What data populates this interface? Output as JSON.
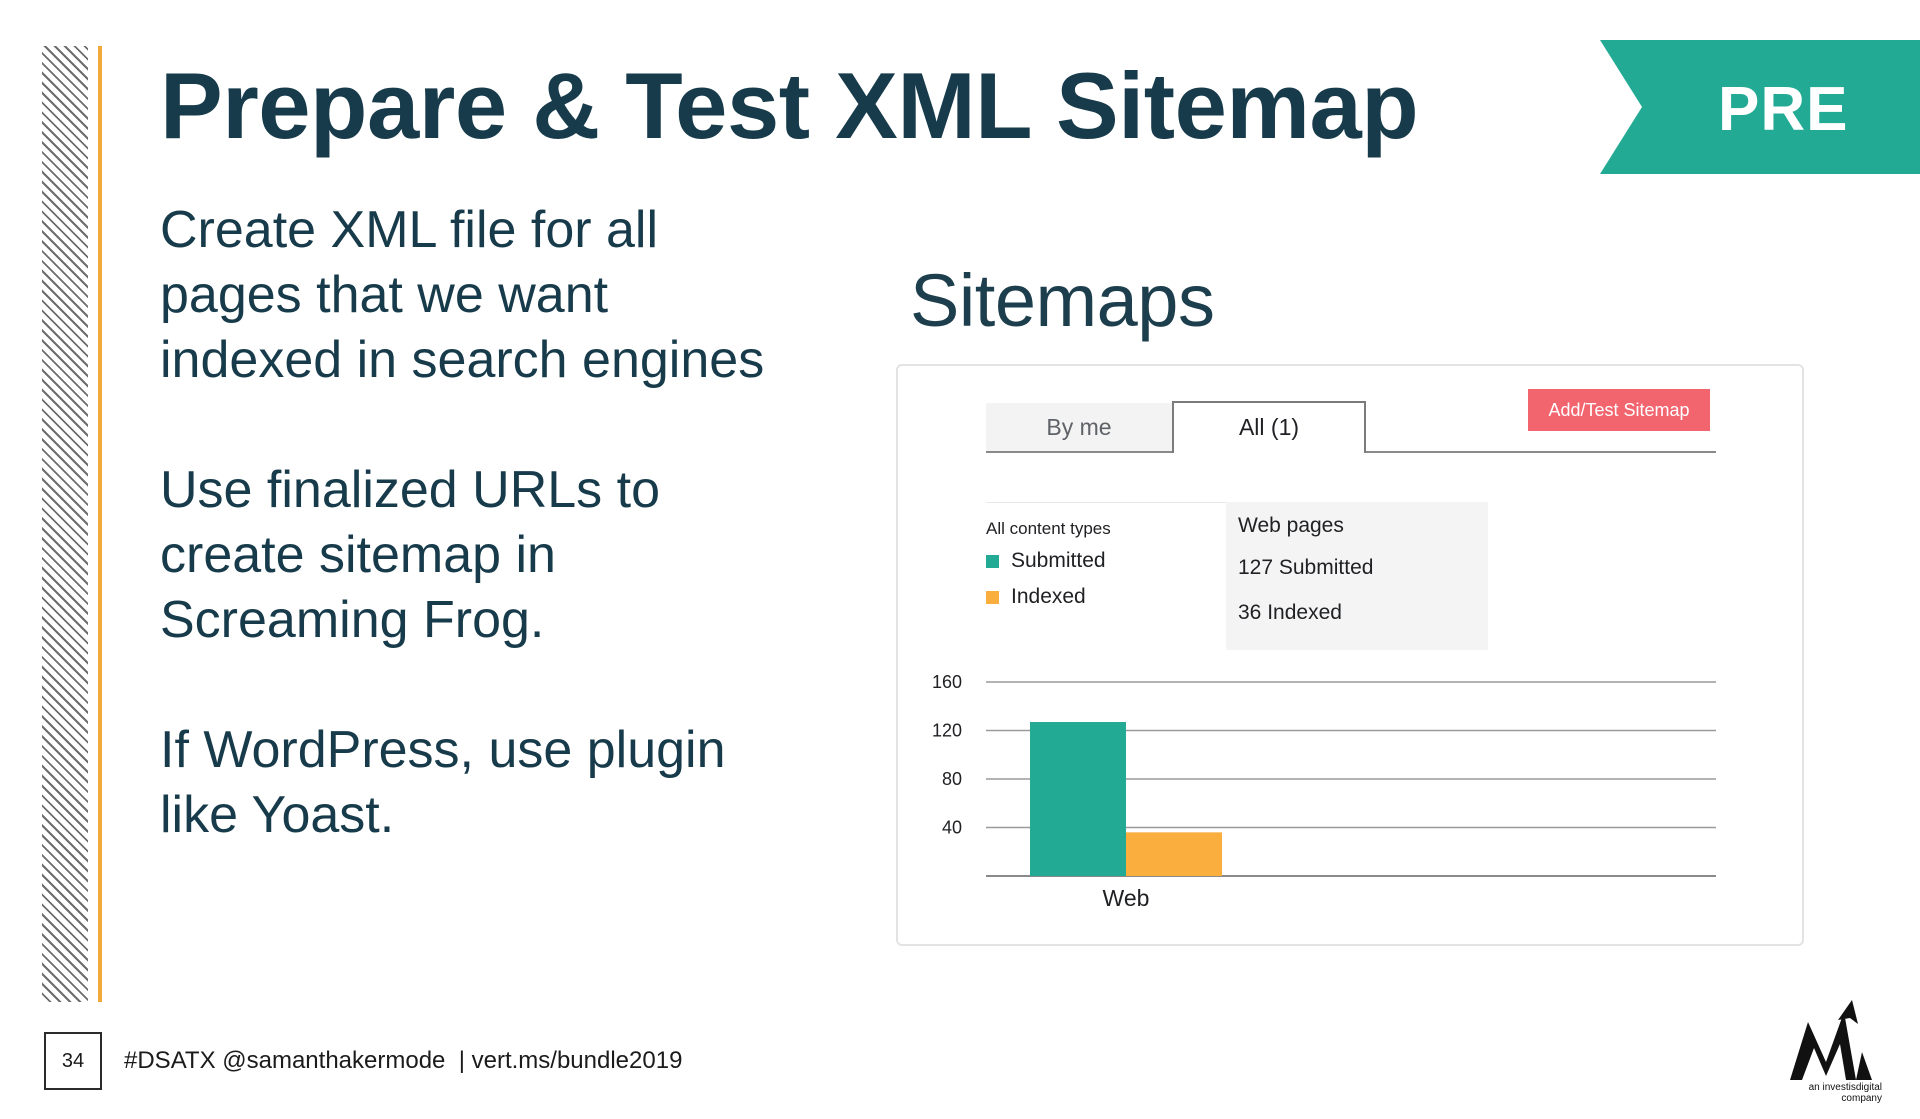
{
  "slide": {
    "title": "Prepare & Test XML Sitemap",
    "badge": "PRE",
    "paragraphs": [
      [
        "Create XML file for all",
        "pages that we want",
        "indexed in search engines"
      ],
      [
        "Use finalized URLs to",
        "create sitemap in",
        "Screaming Frog."
      ],
      [
        "If WordPress, use plugin",
        "like Yoast."
      ]
    ],
    "page_number": "34",
    "footer": "#DSATX @samanthakermode  | vert.ms/bundle2019",
    "logo_tagline": "an investisdigital company"
  },
  "sitemaps_ui": {
    "heading": "Sitemaps",
    "tabs": [
      "By me",
      "All (1)"
    ],
    "active_tab": "All (1)",
    "add_button": "Add/Test Sitemap",
    "legend": {
      "heading": "All content types",
      "items": [
        {
          "label": "Submitted",
          "color": "#22aa94"
        },
        {
          "label": "Indexed",
          "color": "#f9ae3d"
        }
      ]
    },
    "stats": {
      "heading": "Web pages",
      "submitted": "127 Submitted",
      "indexed": "36 Indexed"
    }
  },
  "colors": {
    "primary_text": "#173b4a",
    "accent_teal": "#22aa94",
    "accent_orange": "#f2a93b",
    "button_red": "#f2646e"
  },
  "chart_data": {
    "type": "bar",
    "categories": [
      "Web"
    ],
    "series": [
      {
        "name": "Submitted",
        "values": [
          127
        ],
        "color": "#22aa94"
      },
      {
        "name": "Indexed",
        "values": [
          36
        ],
        "color": "#f9ae3d"
      }
    ],
    "yticks": [
      40,
      80,
      120,
      160
    ],
    "ylim": [
      0,
      160
    ],
    "grid": true
  }
}
